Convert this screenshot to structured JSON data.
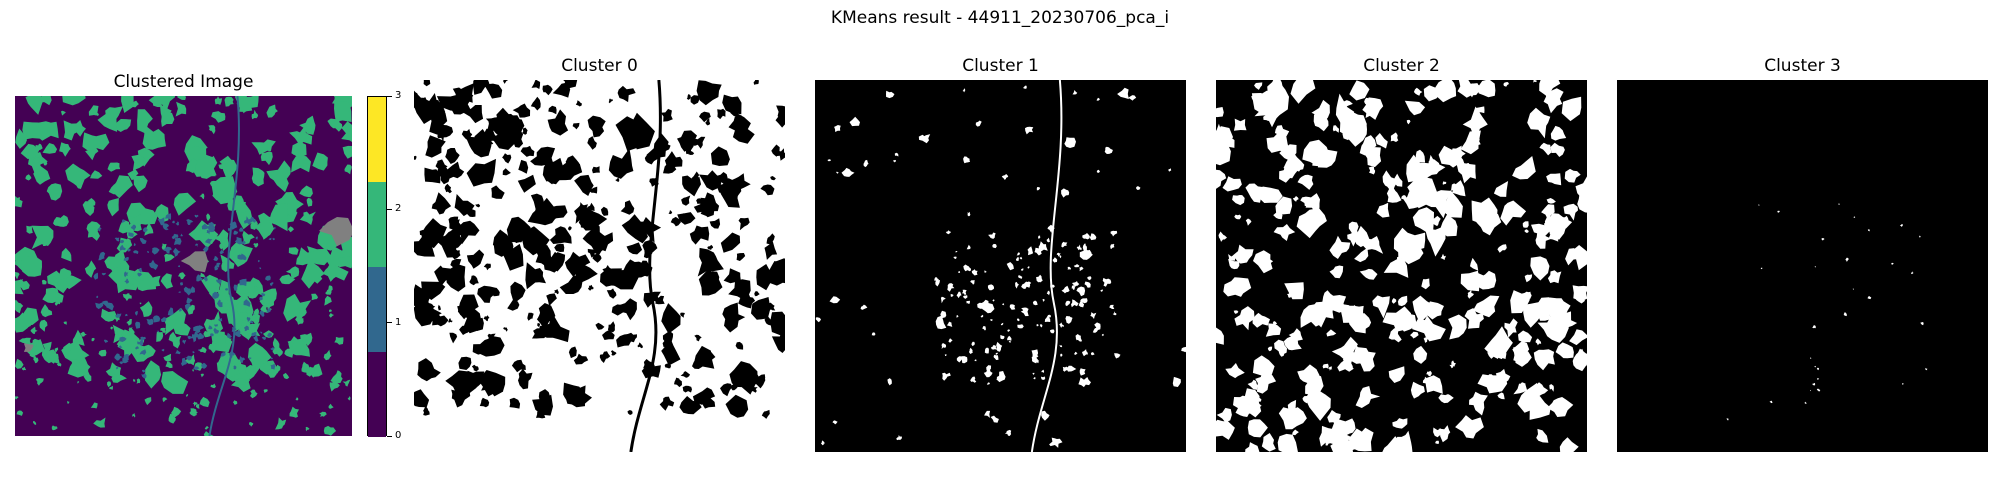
{
  "figure": {
    "suptitle": "KMeans result - 44911_20230706_pca_i"
  },
  "chart_data": [
    {
      "type": "heatmap",
      "title": "Clustered Image",
      "colormap": "viridis",
      "colorbar": {
        "ticks": [
          "0",
          "1",
          "2",
          "3"
        ],
        "levels": [
          {
            "value": 0,
            "color": "#440154"
          },
          {
            "value": 1,
            "color": "#31688e"
          },
          {
            "value": 2,
            "color": "#35b779"
          },
          {
            "value": 3,
            "color": "#fde725"
          }
        ]
      },
      "nodata_color": "#808080",
      "axis": "off"
    },
    {
      "type": "heatmap",
      "title": "Cluster 0",
      "colormap": "binary mask",
      "fill": "white",
      "background": "black",
      "axis": "off"
    },
    {
      "type": "heatmap",
      "title": "Cluster 1",
      "colormap": "binary mask",
      "fill": "white",
      "background": "black",
      "axis": "off"
    },
    {
      "type": "heatmap",
      "title": "Cluster 2",
      "colormap": "binary mask",
      "fill": "white",
      "background": "black",
      "axis": "off"
    },
    {
      "type": "heatmap",
      "title": "Cluster 3",
      "colormap": "binary mask",
      "fill": "white",
      "background": "black",
      "axis": "off"
    }
  ]
}
